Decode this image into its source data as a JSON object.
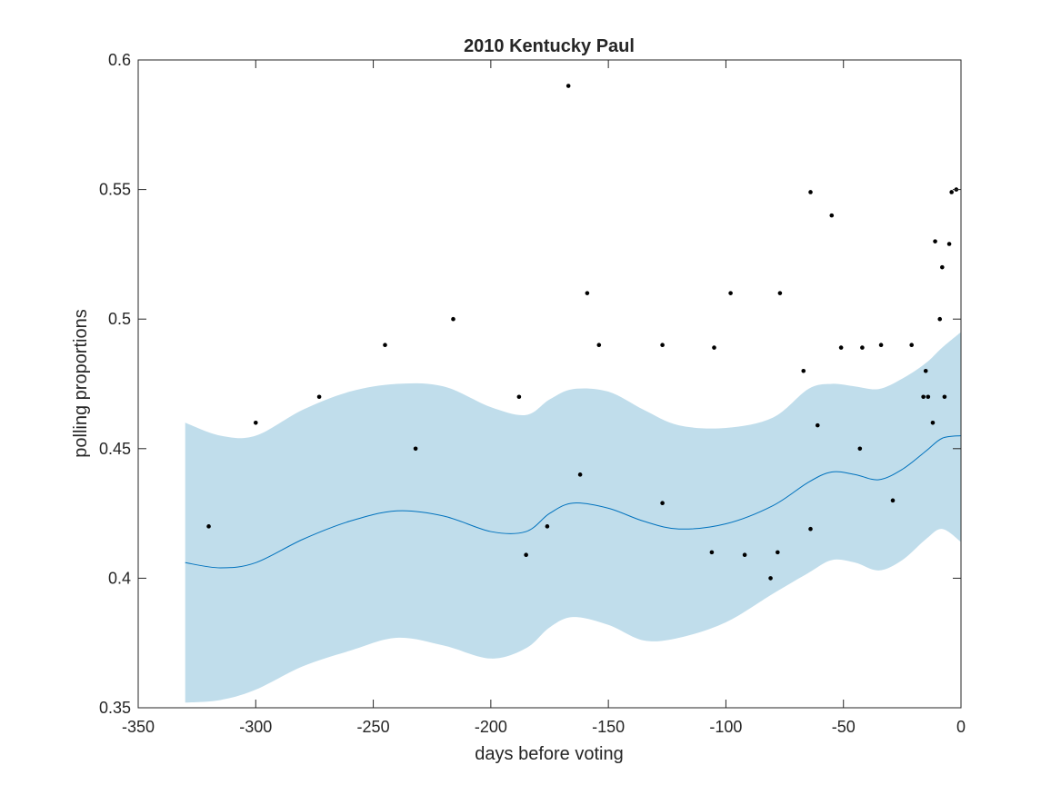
{
  "chart_data": {
    "type": "scatter",
    "title": "2010 Kentucky Paul",
    "xlabel": "days before voting",
    "ylabel": "polling proportions",
    "xlim": [
      -350,
      0
    ],
    "ylim": [
      0.35,
      0.6
    ],
    "xticks": [
      -350,
      -300,
      -250,
      -200,
      -150,
      -100,
      -50,
      0
    ],
    "yticks": [
      0.35,
      0.4,
      0.45,
      0.5,
      0.55,
      0.6
    ],
    "xtick_labels": [
      "-350",
      "-300",
      "-250",
      "-200",
      "-150",
      "-100",
      "-50",
      "0"
    ],
    "ytick_labels": [
      "0.35",
      "0.4",
      "0.45",
      "0.5",
      "0.55",
      "0.6"
    ],
    "grid": false,
    "box": true,
    "colors": {
      "points": "#000000",
      "trend_line": "#0072bd",
      "band_fill": "#c0ddeb",
      "axes": "#262626"
    },
    "points": {
      "x": [
        -320,
        -300,
        -273,
        -245,
        -232,
        -216,
        -188,
        -185,
        -176,
        -167,
        -162,
        -159,
        -154,
        -127,
        -127,
        -106,
        -105,
        -98,
        -92,
        -81,
        -78,
        -77,
        -67,
        -64,
        -64,
        -61,
        -55,
        -51,
        -43,
        -42,
        -34,
        -29,
        -21,
        -16,
        -15,
        -14,
        -12,
        -11,
        -9,
        -8,
        -7,
        -5,
        -4,
        -2
      ],
      "y": [
        0.42,
        0.46,
        0.47,
        0.49,
        0.45,
        0.5,
        0.47,
        0.409,
        0.42,
        0.59,
        0.44,
        0.51,
        0.49,
        0.49,
        0.429,
        0.41,
        0.489,
        0.51,
        0.409,
        0.4,
        0.41,
        0.51,
        0.48,
        0.549,
        0.419,
        0.459,
        0.54,
        0.489,
        0.45,
        0.489,
        0.49,
        0.43,
        0.49,
        0.47,
        0.48,
        0.47,
        0.46,
        0.53,
        0.5,
        0.52,
        0.47,
        0.529,
        0.549,
        0.55
      ]
    },
    "trend": {
      "x": [
        -330,
        -315,
        -300,
        -280,
        -260,
        -240,
        -220,
        -200,
        -185,
        -175,
        -165,
        -150,
        -135,
        -120,
        -100,
        -80,
        -65,
        -55,
        -45,
        -35,
        -25,
        -15,
        -8,
        0
      ],
      "mean": [
        0.406,
        0.404,
        0.406,
        0.415,
        0.422,
        0.426,
        0.424,
        0.418,
        0.418,
        0.425,
        0.429,
        0.427,
        0.422,
        0.419,
        0.421,
        0.428,
        0.437,
        0.441,
        0.44,
        0.438,
        0.442,
        0.449,
        0.454,
        0.455
      ],
      "upper": [
        0.46,
        0.455,
        0.455,
        0.465,
        0.472,
        0.475,
        0.474,
        0.466,
        0.463,
        0.469,
        0.473,
        0.472,
        0.465,
        0.459,
        0.458,
        0.462,
        0.473,
        0.475,
        0.474,
        0.473,
        0.477,
        0.483,
        0.489,
        0.495
      ],
      "lower": [
        0.352,
        0.353,
        0.357,
        0.366,
        0.372,
        0.377,
        0.374,
        0.369,
        0.373,
        0.381,
        0.385,
        0.382,
        0.376,
        0.377,
        0.383,
        0.394,
        0.402,
        0.407,
        0.406,
        0.403,
        0.407,
        0.415,
        0.419,
        0.414
      ]
    }
  }
}
